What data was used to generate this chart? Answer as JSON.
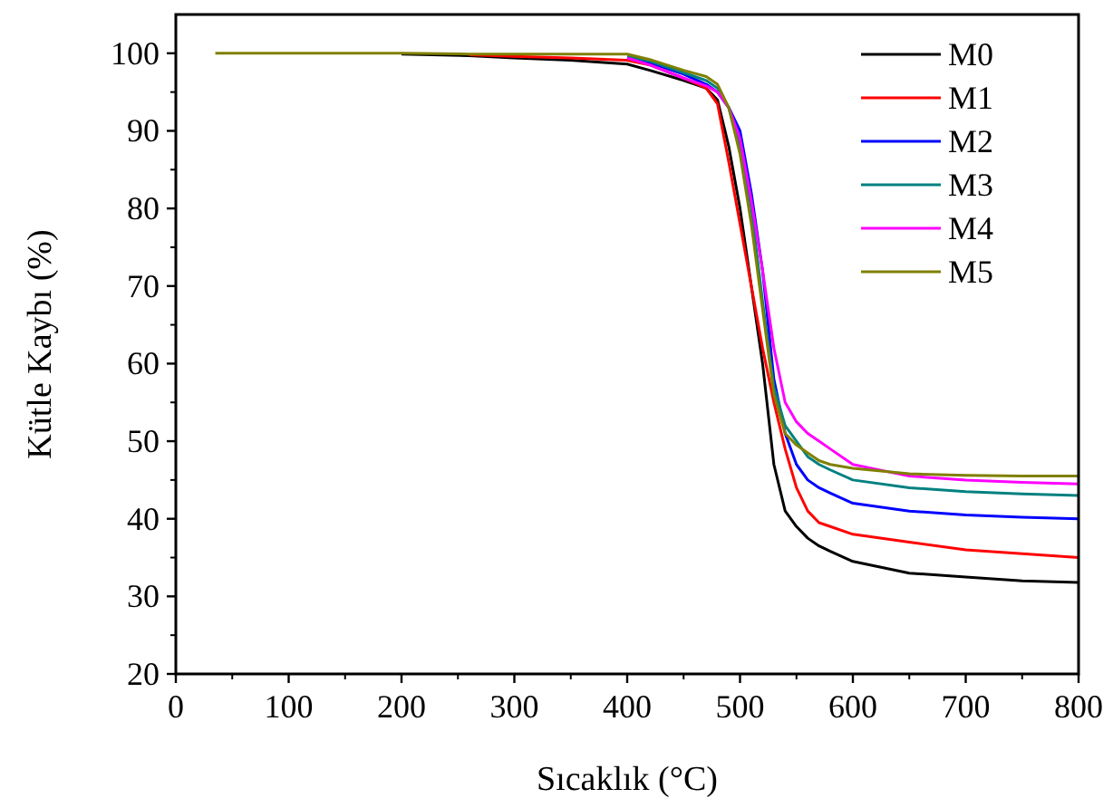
{
  "chart_data": {
    "type": "line",
    "xlabel": "Sıcaklık (°C)",
    "ylabel": "Kütle Kaybı (%)",
    "xlim": [
      0,
      800
    ],
    "ylim": [
      20,
      105
    ],
    "xticks": [
      0,
      100,
      200,
      300,
      400,
      500,
      600,
      700,
      800
    ],
    "yticks": [
      20,
      30,
      40,
      50,
      60,
      70,
      80,
      90,
      100
    ],
    "grid": false,
    "legend": "top right",
    "marker": "none",
    "line_style": "solid",
    "x": [
      35,
      100,
      200,
      260,
      300,
      350,
      400,
      420,
      450,
      470,
      480,
      490,
      500,
      510,
      520,
      530,
      540,
      550,
      560,
      570,
      580,
      600,
      650,
      700,
      750,
      800
    ],
    "series": [
      {
        "name": "M0",
        "color": "#000000",
        "values": [
          null,
          null,
          99.9,
          99.7,
          99.4,
          99.1,
          98.6,
          97.8,
          96.5,
          95.5,
          94,
          88,
          80,
          70,
          60,
          47,
          41,
          39,
          37.5,
          36.5,
          35.8,
          34.5,
          33,
          32.5,
          32,
          31.8
        ]
      },
      {
        "name": "M1",
        "color": "#ff0000",
        "values": [
          null,
          null,
          null,
          99.8,
          99.6,
          99.4,
          99.1,
          98.5,
          96.8,
          95.5,
          93.5,
          86,
          78,
          70,
          62,
          55,
          49,
          44,
          41,
          39.5,
          39,
          38,
          37,
          36,
          35.5,
          35
        ]
      },
      {
        "name": "M2",
        "color": "#0000ff",
        "values": [
          null,
          null,
          null,
          null,
          null,
          null,
          99.4,
          98.8,
          97.3,
          96,
          95,
          93,
          90,
          82,
          72,
          58,
          51,
          47,
          45,
          44,
          43.3,
          42,
          41,
          40.5,
          40.2,
          40
        ]
      },
      {
        "name": "M3",
        "color": "#008080",
        "values": [
          null,
          null,
          null,
          null,
          null,
          null,
          99.6,
          99,
          97.5,
          96.5,
          95.5,
          93,
          88,
          80,
          68,
          57,
          52,
          50,
          48,
          47,
          46.3,
          45,
          44,
          43.5,
          43.2,
          43
        ]
      },
      {
        "name": "M4",
        "color": "#ff00ff",
        "values": [
          null,
          null,
          null,
          null,
          null,
          null,
          99.4,
          98.5,
          96.8,
          95.8,
          95,
          93,
          89,
          81,
          72,
          62,
          55,
          52.5,
          51,
          50,
          49,
          47,
          45.5,
          45,
          44.7,
          44.5
        ]
      },
      {
        "name": "M5",
        "color": "#808000",
        "values": [
          100,
          100,
          100,
          99.9,
          99.9,
          99.9,
          99.9,
          99.2,
          97.8,
          97,
          96,
          93,
          87,
          78,
          67,
          56,
          51,
          49.5,
          48.5,
          47.5,
          47,
          46.5,
          45.8,
          45.6,
          45.5,
          45.5
        ]
      }
    ]
  }
}
